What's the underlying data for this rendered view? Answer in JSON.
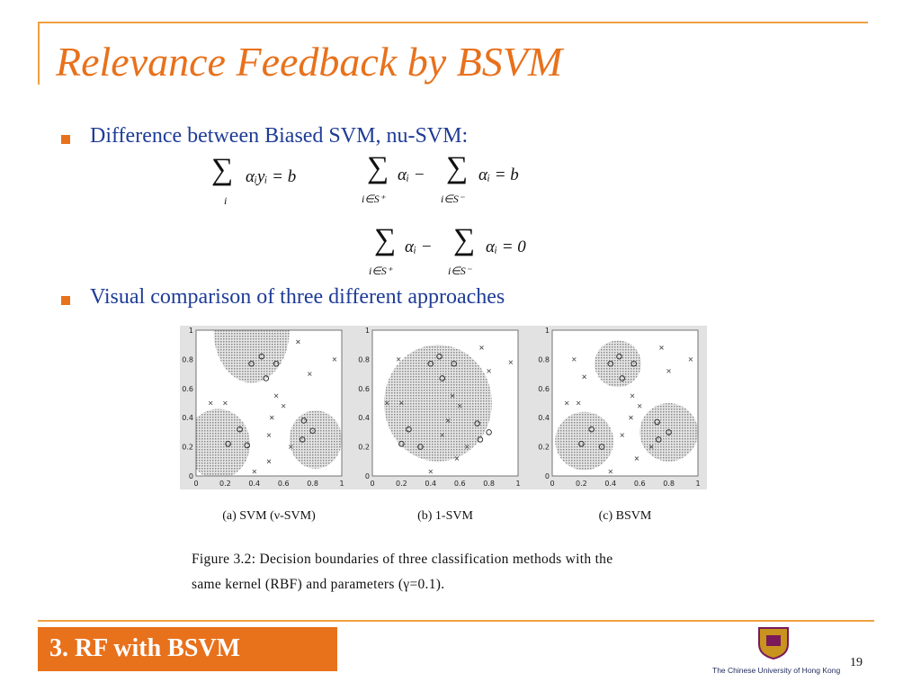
{
  "header": {
    "title": "Relevance Feedback by BSVM"
  },
  "bullets": [
    "Difference between Biased SVM, nu-SVM:",
    "Visual comparison of three different approaches"
  ],
  "formulas": [
    {
      "sum": "∑",
      "sub": "i",
      "body": "αᵢyᵢ = b"
    },
    {
      "sum1": "∑",
      "sub1": "i∈S⁺",
      "body1": "αᵢ −",
      "sum2": "∑",
      "sub2": "i∈S⁻",
      "body2": "αᵢ = b"
    },
    {
      "sum1": "∑",
      "sub1": "i∈S⁺",
      "body1": "αᵢ −",
      "sum2": "∑",
      "sub2": "i∈S⁻",
      "body2": "αᵢ = 0"
    }
  ],
  "figure": {
    "panels": [
      {
        "caption": "(a) SVM (ν-SVM)",
        "xticks": [
          0,
          0.2,
          0.4,
          0.6,
          0.8,
          1
        ],
        "yticks": [
          0,
          0.2,
          0.4,
          0.6,
          0.8,
          1
        ]
      },
      {
        "caption": "(b) 1-SVM",
        "xticks": [
          0,
          0.2,
          0.4,
          0.6,
          0.8,
          1
        ],
        "yticks": [
          0,
          0.2,
          0.4,
          0.6,
          0.8,
          1
        ]
      },
      {
        "caption": "(c) BSVM",
        "xticks": [
          0,
          0.2,
          0.4,
          0.6,
          0.8,
          1
        ],
        "yticks": [
          0,
          0.2,
          0.4,
          0.6,
          0.8,
          1
        ]
      }
    ],
    "caption_lines": [
      "Figure 3.2:  Decision boundaries of three classification methods with the",
      "same kernel (RBF) and parameters (γ=0.1)."
    ]
  },
  "footer": {
    "section": "3. RF  with BSVM",
    "university": "The Chinese University of Hong Kong",
    "page": "19"
  }
}
